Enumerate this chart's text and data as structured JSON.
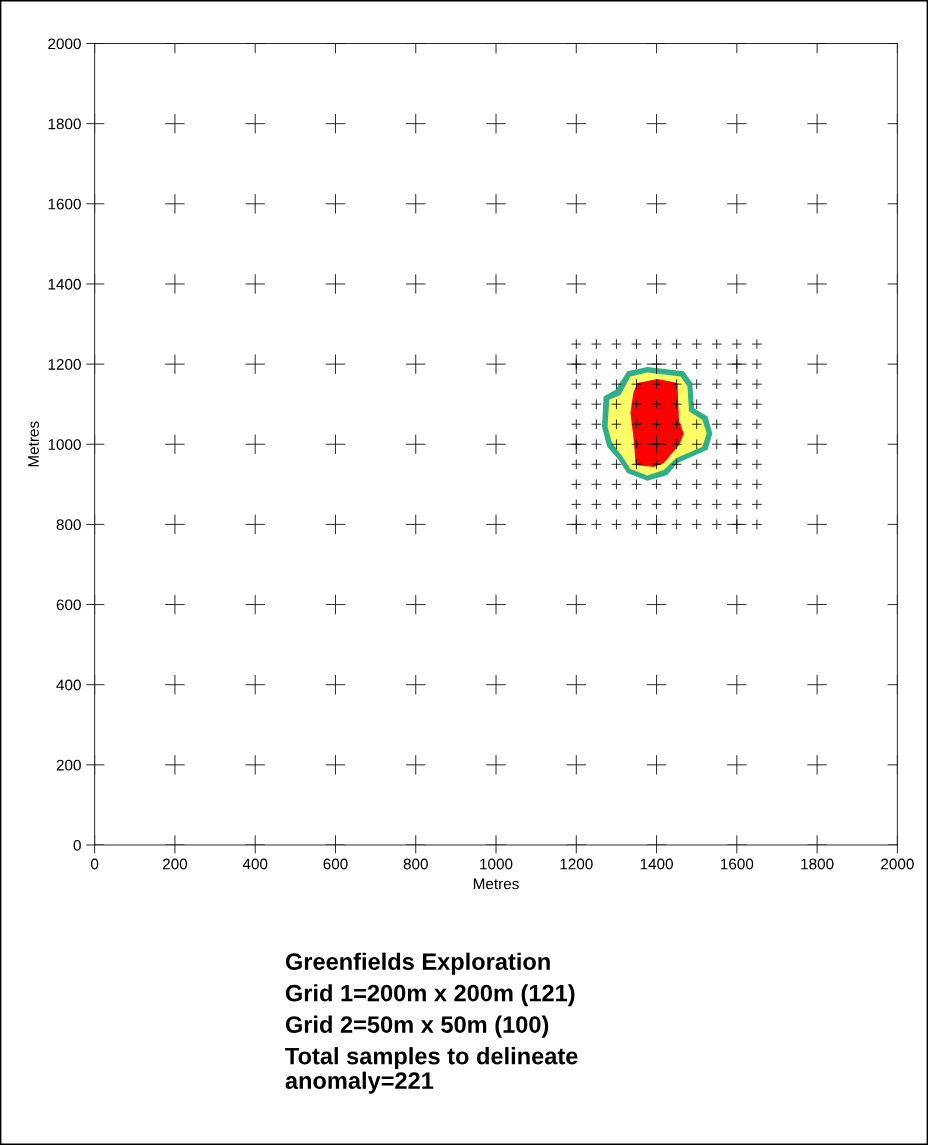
{
  "chart_data": {
    "type": "scatter",
    "xlabel": "Metres",
    "ylabel": "Metres",
    "xlim": [
      0,
      2000
    ],
    "ylim": [
      0,
      2000
    ],
    "xticks": [
      0,
      200,
      400,
      600,
      800,
      1000,
      1200,
      1400,
      1600,
      1800,
      2000
    ],
    "yticks": [
      0,
      200,
      400,
      600,
      800,
      1000,
      1200,
      1400,
      1600,
      1800,
      2000
    ],
    "grid": false,
    "legend": false,
    "marker": "cross",
    "series": [
      {
        "color": "#000000",
        "x": [
          0,
          200,
          400,
          600,
          800,
          1000,
          1200,
          1400,
          1600,
          1800,
          2000,
          0,
          200,
          400,
          600,
          800,
          1000,
          1200,
          1400,
          1600,
          1800,
          2000,
          0,
          200,
          400,
          600,
          800,
          1000,
          1200,
          1400,
          1600,
          1800,
          2000,
          0,
          200,
          400,
          600,
          800,
          1000,
          1200,
          1400,
          1600,
          1800,
          2000,
          0,
          200,
          400,
          600,
          800,
          1000,
          1200,
          1400,
          1600,
          1800,
          2000,
          0,
          200,
          400,
          600,
          800,
          1000,
          1200,
          1400,
          1600,
          1800,
          2000,
          0,
          200,
          400,
          600,
          800,
          1000,
          1200,
          1400,
          1600,
          1800,
          2000,
          0,
          200,
          400,
          600,
          800,
          1000,
          1200,
          1400,
          1600,
          1800,
          2000,
          0,
          200,
          400,
          600,
          800,
          1000,
          1200,
          1400,
          1600,
          1800,
          2000,
          0,
          200,
          400,
          600,
          800,
          1000,
          1200,
          1400,
          1600,
          1800,
          2000,
          0,
          200,
          400,
          600,
          800,
          1000,
          1200,
          1400,
          1600,
          1800,
          2000
        ],
        "values": [
          0,
          0,
          0,
          0,
          0,
          0,
          0,
          0,
          0,
          0,
          0,
          200,
          200,
          200,
          200,
          200,
          200,
          200,
          200,
          200,
          200,
          200,
          400,
          400,
          400,
          400,
          400,
          400,
          400,
          400,
          400,
          400,
          400,
          600,
          600,
          600,
          600,
          600,
          600,
          600,
          600,
          600,
          600,
          600,
          800,
          800,
          800,
          800,
          800,
          800,
          800,
          800,
          800,
          800,
          800,
          1000,
          1000,
          1000,
          1000,
          1000,
          1000,
          1000,
          1000,
          1000,
          1000,
          1000,
          1200,
          1200,
          1200,
          1200,
          1200,
          1200,
          1200,
          1200,
          1200,
          1200,
          1200,
          1400,
          1400,
          1400,
          1400,
          1400,
          1400,
          1400,
          1400,
          1400,
          1400,
          1400,
          1600,
          1600,
          1600,
          1600,
          1600,
          1600,
          1600,
          1600,
          1600,
          1600,
          1600,
          1800,
          1800,
          1800,
          1800,
          1800,
          1800,
          1800,
          1800,
          1800,
          1800,
          1800,
          2000,
          2000,
          2000,
          2000,
          2000,
          2000,
          2000,
          2000,
          2000,
          2000,
          2000
        ]
      },
      {
        "color": "#000000",
        "x": [
          1200,
          1250,
          1300,
          1350,
          1400,
          1450,
          1500,
          1550,
          1600,
          1650,
          1200,
          1250,
          1300,
          1350,
          1400,
          1450,
          1500,
          1550,
          1600,
          1650,
          1200,
          1250,
          1300,
          1350,
          1400,
          1450,
          1500,
          1550,
          1600,
          1650,
          1200,
          1250,
          1300,
          1350,
          1400,
          1450,
          1500,
          1550,
          1600,
          1650,
          1200,
          1250,
          1300,
          1350,
          1400,
          1450,
          1500,
          1550,
          1600,
          1650,
          1200,
          1250,
          1300,
          1350,
          1400,
          1450,
          1500,
          1550,
          1600,
          1650,
          1200,
          1250,
          1300,
          1350,
          1400,
          1450,
          1500,
          1550,
          1600,
          1650,
          1200,
          1250,
          1300,
          1350,
          1400,
          1450,
          1500,
          1550,
          1600,
          1650,
          1200,
          1250,
          1300,
          1350,
          1400,
          1450,
          1500,
          1550,
          1600,
          1650,
          1200,
          1250,
          1300,
          1350,
          1400,
          1450,
          1500,
          1550,
          1600,
          1650
        ],
        "values": [
          800,
          800,
          800,
          800,
          800,
          800,
          800,
          800,
          800,
          800,
          850,
          850,
          850,
          850,
          850,
          850,
          850,
          850,
          850,
          850,
          900,
          900,
          900,
          900,
          900,
          900,
          900,
          900,
          900,
          900,
          950,
          950,
          950,
          950,
          950,
          950,
          950,
          950,
          950,
          950,
          1000,
          1000,
          1000,
          1000,
          1000,
          1000,
          1000,
          1000,
          1000,
          1000,
          1050,
          1050,
          1050,
          1050,
          1050,
          1050,
          1050,
          1050,
          1050,
          1050,
          1100,
          1100,
          1100,
          1100,
          1100,
          1100,
          1100,
          1100,
          1100,
          1100,
          1150,
          1150,
          1150,
          1150,
          1150,
          1150,
          1150,
          1150,
          1150,
          1150,
          1200,
          1200,
          1200,
          1200,
          1200,
          1200,
          1200,
          1200,
          1200,
          1200,
          1250,
          1250,
          1250,
          1250,
          1250,
          1250,
          1250,
          1250,
          1250,
          1250
        ]
      }
    ],
    "title": "Greenfields Exploration",
    "annotations": [
      "Grid 1=200m x 200m (121)",
      "Grid 2=50m x 50m (100)",
      "Total samples to delineate\nanomaly=221"
    ]
  }
}
